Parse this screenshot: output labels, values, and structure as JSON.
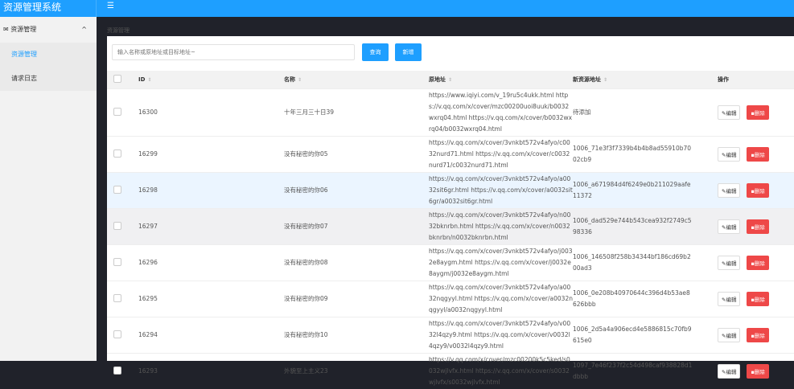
{
  "app": {
    "title": "资源管理系统",
    "menu_icon": "hamburger-icon"
  },
  "sidebar": {
    "group": {
      "label": "资源管理",
      "icon": "envelope-icon"
    },
    "items": [
      {
        "label": "资源管理",
        "active": true
      },
      {
        "label": "请求日志"
      }
    ]
  },
  "breadcrumb": "资源管理",
  "toolbar": {
    "search_placeholder": "输入名称或原地址或目标地址~",
    "query_label": "查询",
    "add_label": "新增"
  },
  "table": {
    "headers": {
      "id": "ID",
      "name": "名称",
      "source": "原地址",
      "new": "新资源地址",
      "actions": "操作"
    },
    "edit_label": "编辑",
    "delete_label": "删除",
    "rows": [
      {
        "id": "16300",
        "name": "十年三月三十日39",
        "source": "https://www.iqiyi.com/v_19ru5c4ukk.html https://v.qq.com/x/cover/mzc00200uoi8uuk/b0032wxrq04.html https://v.qq.com/x/cover/b0032wxrq04/b0032wxrq04.html",
        "new": "待添加"
      },
      {
        "id": "16299",
        "name": "没有秘密的你05",
        "source": "https://v.qq.com/x/cover/3vnkbt572v4afyo/c0032nurd71.html https://v.qq.com/x/cover/c0032nurd71/c0032nurd71.html",
        "new": "1006_71e3f3f7339b4b4b8ad55910b7002cb9"
      },
      {
        "id": "16298",
        "name": "没有秘密的你06",
        "source": "https://v.qq.com/x/cover/3vnkbt572v4afyo/a0032sit6gr.html https://v.qq.com/x/cover/a0032sit6gr/a0032sit6gr.html",
        "new": "1006_a671984d4f6249e0b211029aafe11372"
      },
      {
        "id": "16297",
        "name": "没有秘密的你07",
        "source": "https://v.qq.com/x/cover/3vnkbt572v4afyo/n0032bknrbn.html https://v.qq.com/x/cover/n0032bknrbn/n0032bknrbn.html",
        "new": "1006_dad529e744b543cea932f2749c598336"
      },
      {
        "id": "16296",
        "name": "没有秘密的你08",
        "source": "https://v.qq.com/x/cover/3vnkbt572v4afyo/j0032e8aygm.html https://v.qq.com/x/cover/j0032e8aygm/j0032e8aygm.html",
        "new": "1006_146508f258b34344bf186cd69b200ad3"
      },
      {
        "id": "16295",
        "name": "没有秘密的你09",
        "source": "https://v.qq.com/x/cover/3vnkbt572v4afyo/a0032nqgyyl.html https://v.qq.com/x/cover/a0032nqgyyl/a0032nqgyyl.html",
        "new": "1006_0e208b40970644c396d4b53ae8626bbb"
      },
      {
        "id": "16294",
        "name": "没有秘密的你10",
        "source": "https://v.qq.com/x/cover/3vnkbt572v4afyo/v0032l4qzy9.html https://v.qq.com/x/cover/v0032l4qzy9/v0032l4qzy9.html",
        "new": "1006_2d5a4a906ecd4e5886815c70fb9615e0"
      },
      {
        "id": "16293",
        "name": "外貌至上主义23",
        "source": "https://v.qq.com/x/cover/mzc00200k5c5ked/s0032wjlvfx.html https://v.qq.com/x/cover/s0032wjlvfx/s0032wjlvfx.html",
        "new": "1097_7e46f237f2c54d498caf938828d1dbbb"
      }
    ]
  },
  "colors": {
    "primary": "#1e9fff",
    "danger": "#ee4848",
    "dark": "#20222a"
  }
}
